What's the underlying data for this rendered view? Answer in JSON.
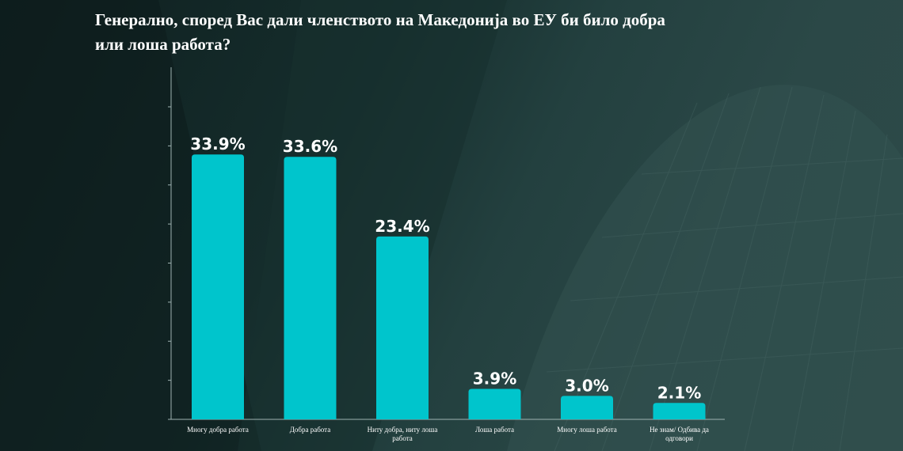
{
  "title": "Генерално, според Вас дали членството на Македонија во ЕУ би било добра или лоша работа?",
  "colors": {
    "bar": "#00c5cc",
    "text": "#ffffff",
    "axis": "#9fb3b2"
  },
  "chart_data": {
    "type": "bar",
    "title": "Генерално, според Вас дали членството на Македонија во ЕУ би било добра или лоша работа?",
    "categories": [
      "Многу добра работа",
      "Добра работа",
      "Ниту добра, ниту лоша работа",
      "Лоша работа",
      "Многу лоша работа",
      "Не знам/ Одбива да одговори"
    ],
    "category_lines": [
      [
        "Многу добра работа"
      ],
      [
        "Добра работа"
      ],
      [
        "Ниту добра, ниту лоша",
        "работа"
      ],
      [
        "Лоша работа"
      ],
      [
        "Многу лоша работа"
      ],
      [
        "Не знам/ Одбива да",
        "одговори"
      ]
    ],
    "values": [
      33.9,
      33.6,
      23.4,
      3.9,
      3.0,
      2.1
    ],
    "data_labels": [
      "33.9%",
      "33.6%",
      "23.4%",
      "3.9%",
      "3.0%",
      "2.1%"
    ],
    "unit": "%",
    "ylim": [
      0,
      40
    ],
    "grid": false,
    "legend": "none"
  }
}
